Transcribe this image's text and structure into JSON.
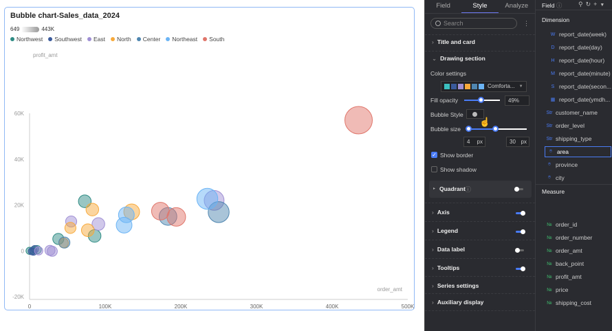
{
  "chart_title": "Bubble chart-Sales_data_2024",
  "size_legend": {
    "min": "649",
    "max": "443K"
  },
  "chart_data": {
    "type": "scatter",
    "title": "Bubble chart-Sales_data_2024",
    "xlabel": "order_amt",
    "ylabel": "profit_amt",
    "xlim": [
      0,
      500000
    ],
    "ylim": [
      -20000,
      60000
    ],
    "xticks": [
      "0",
      "100K",
      "200K",
      "300K",
      "400K",
      "500K"
    ],
    "yticks": [
      "-20K",
      "0",
      "20K",
      "40K",
      "60K"
    ],
    "grid": false,
    "legend_position": "top-left",
    "size_range": [
      649,
      443000
    ],
    "series": [
      {
        "name": "Northwest",
        "color": "#2e8b84",
        "points": [
          [
            73000,
            21600,
            60000
          ],
          [
            86000,
            6500,
            60000
          ],
          [
            38000,
            5200,
            40000
          ],
          [
            0,
            0,
            8000
          ],
          [
            5000,
            200,
            10000
          ],
          [
            10000,
            500,
            15000
          ]
        ]
      },
      {
        "name": "Southwest",
        "color": "#3a5a9b",
        "points": [
          [
            3000,
            -200,
            8000
          ],
          [
            7000,
            700,
            10000
          ],
          [
            5000,
            -400,
            8000
          ]
        ]
      },
      {
        "name": "East",
        "color": "#9f8fd4",
        "points": [
          [
            244000,
            22000,
            200000
          ],
          [
            55000,
            12800,
            40000
          ],
          [
            91000,
            11700,
            60000
          ],
          [
            27000,
            200,
            30000
          ],
          [
            30000,
            -200,
            30000
          ],
          [
            12000,
            0,
            15000
          ]
        ]
      },
      {
        "name": "North",
        "color": "#f7a93b",
        "points": [
          [
            135000,
            17000,
            110000
          ],
          [
            83000,
            18000,
            60000
          ],
          [
            54000,
            10000,
            40000
          ],
          [
            77000,
            9000,
            60000
          ],
          [
            45000,
            3400,
            25000
          ]
        ]
      },
      {
        "name": "Center",
        "color": "#4f86b0",
        "points": [
          [
            250000,
            16900,
            230000
          ],
          [
            183000,
            15000,
            150000
          ],
          [
            46000,
            3600,
            40000
          ]
        ]
      },
      {
        "name": "Northeast",
        "color": "#6bb4f5",
        "points": [
          [
            235000,
            22700,
            230000
          ],
          [
            128000,
            15700,
            110000
          ],
          [
            125000,
            11200,
            110000
          ]
        ]
      },
      {
        "name": "South",
        "color": "#e0756a",
        "points": [
          [
            435000,
            57000,
            443000
          ],
          [
            173000,
            17300,
            150000
          ],
          [
            194000,
            14800,
            170000
          ]
        ]
      }
    ]
  },
  "panel": {
    "tabs": [
      "Field",
      "Style",
      "Analyze"
    ],
    "active_tab": "Style",
    "search_placeholder": "Search",
    "title_and_card": "Title and card",
    "drawing_section": "Drawing section",
    "color_settings": "Color settings",
    "palette_name": "Comforta...",
    "palette": [
      "#3bbfbf",
      "#3a5a9b",
      "#9f8fd4",
      "#f7a93b",
      "#4f86b0",
      "#6bb4f5"
    ],
    "fill_opacity_label": "Fill opacity",
    "fill_opacity": "49%",
    "fill_opacity_value": 49,
    "bubble_style": "Bubble Style",
    "bubble_size": "Bubble size",
    "size_min": "4",
    "size_max": "30",
    "unit": "px",
    "show_border": "Show border",
    "show_border_checked": true,
    "show_shadow": "Show shadow",
    "show_shadow_checked": false,
    "quadrant": "Quadrant",
    "quadrant_on": false,
    "axis": "Axis",
    "axis_on": true,
    "legend": "Legend",
    "legend_on": true,
    "data_label": "Data label",
    "data_label_on": false,
    "tooltips": "Tooltips",
    "tooltips_on": true,
    "series_settings": "Series settings",
    "auxiliary_display": "Auxiliary display"
  },
  "fields": {
    "header": "Field",
    "dimension": "Dimension",
    "dimensions": [
      {
        "icon": "W",
        "label": "report_date(week)"
      },
      {
        "icon": "D",
        "label": "report_date(day)"
      },
      {
        "icon": "H",
        "label": "report_date(hour)"
      },
      {
        "icon": "M",
        "label": "report_date(minute)"
      },
      {
        "icon": "S",
        "label": "report_date(secon..."
      },
      {
        "icon": "▦",
        "label": "report_date(ymdh..."
      },
      {
        "icon": "Str",
        "label": "customer_name"
      },
      {
        "icon": "Str",
        "label": "order_level"
      },
      {
        "icon": "Str",
        "label": "shipping_type"
      },
      {
        "icon": "⌾",
        "label": "area"
      },
      {
        "icon": "⌾",
        "label": "province"
      },
      {
        "icon": "⌾",
        "label": "city"
      }
    ],
    "measure": "Measure",
    "measures": [
      "order_id",
      "order_number",
      "order_amt",
      "back_point",
      "profit_amt",
      "price",
      "shipping_cost"
    ],
    "measure_icon": "№"
  }
}
